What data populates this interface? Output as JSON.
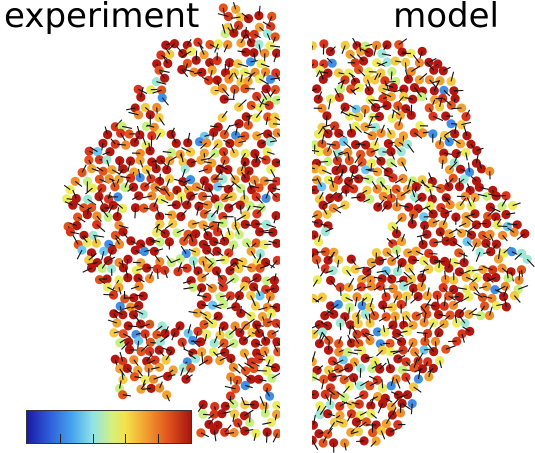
{
  "panels": {
    "left_title": "experiment",
    "right_title": "model"
  },
  "colorbar": {
    "tick_count": 4,
    "colors": [
      "#1a1aa8",
      "#2e5fd9",
      "#47a6ee",
      "#8fe3e8",
      "#d6f07d",
      "#f4e24a",
      "#f2a230",
      "#e2541c",
      "#a8140f"
    ]
  },
  "cell_colors": [
    "#b3170f",
    "#d8351b",
    "#e2541c",
    "#f08a2a",
    "#f2a230",
    "#f6c943",
    "#ecec5c",
    "#c9ef7e",
    "#9fe8d6",
    "#6cc8f0",
    "#3f8fe6"
  ]
}
